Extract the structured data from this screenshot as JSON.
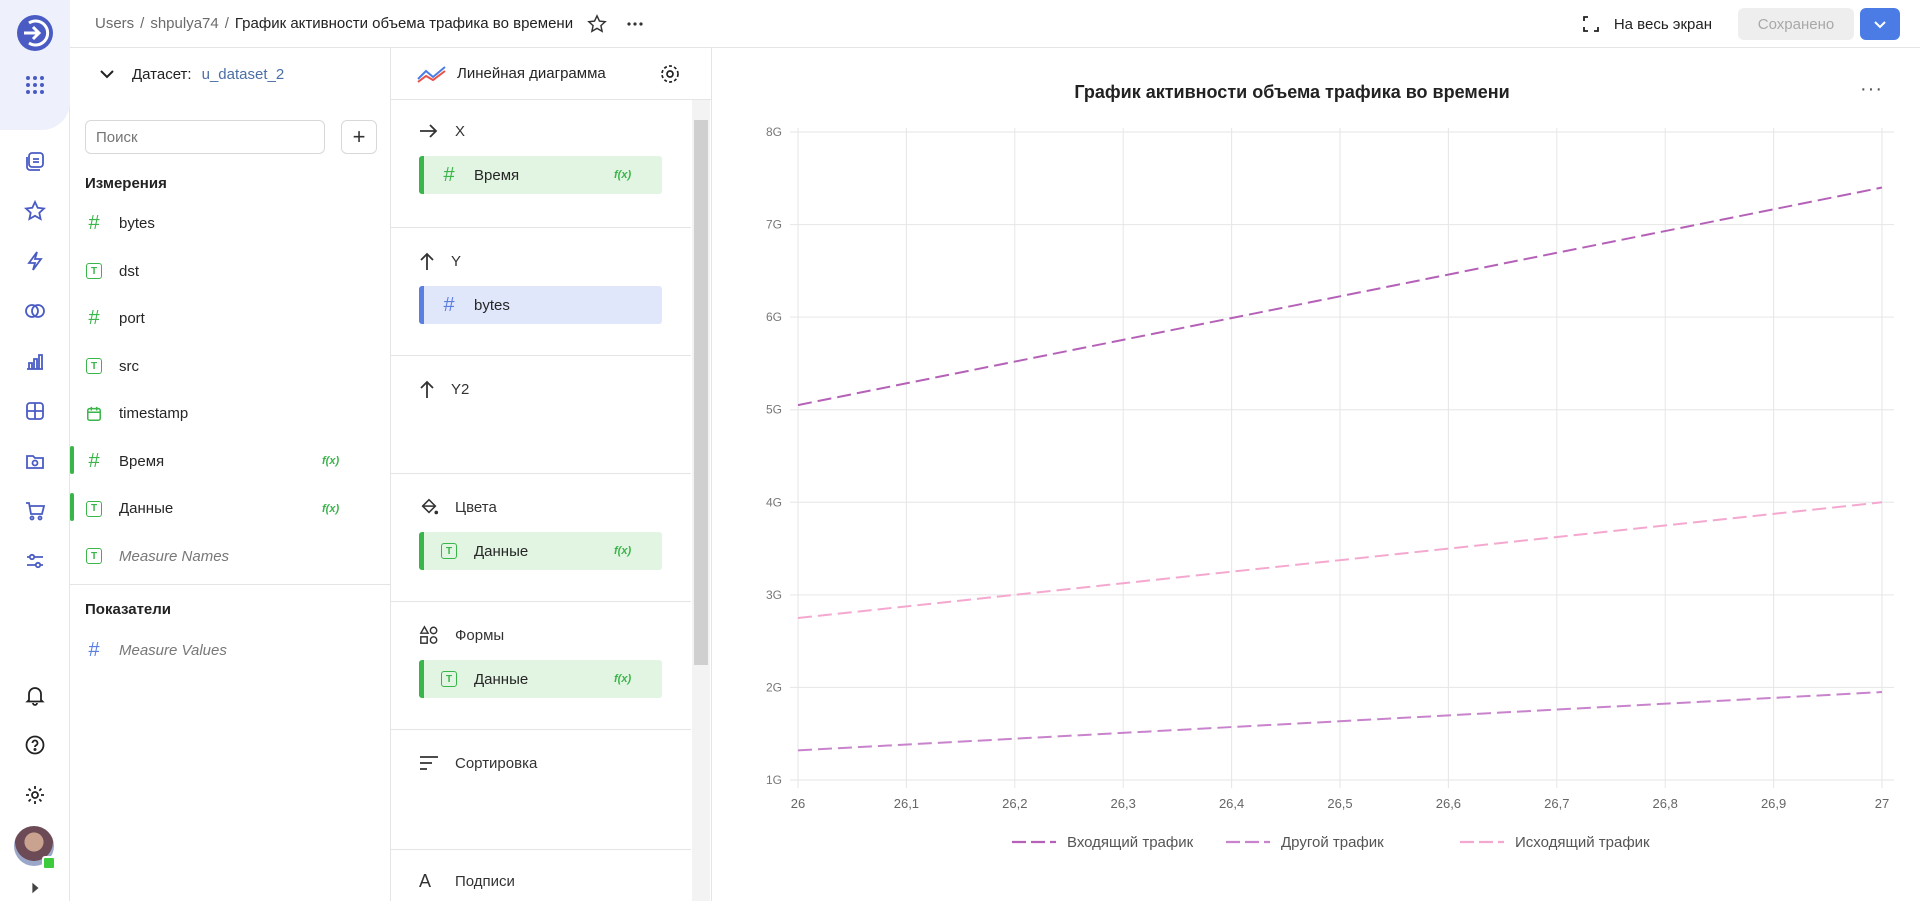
{
  "breadcrumbs": {
    "root": "Users",
    "user": "shpulya74",
    "current": "График активности объема трафика во времени"
  },
  "header": {
    "fullscreen_label": "На весь экран",
    "saved_label": "Сохранено"
  },
  "dataset_panel": {
    "label": "Датасет:",
    "dataset_name": "u_dataset_2",
    "search_placeholder": "Поиск",
    "dimensions_title": "Измерения",
    "measures_title": "Показатели",
    "dimensions": [
      {
        "name": "bytes",
        "type": "number"
      },
      {
        "name": "dst",
        "type": "text"
      },
      {
        "name": "port",
        "type": "number"
      },
      {
        "name": "src",
        "type": "text"
      },
      {
        "name": "timestamp",
        "type": "date"
      },
      {
        "name": "Время",
        "type": "number",
        "formula": true
      },
      {
        "name": "Данные",
        "type": "text",
        "formula": true
      },
      {
        "name": "Measure Names",
        "type": "text",
        "italic": true
      }
    ],
    "measures": [
      {
        "name": "Measure Values",
        "type": "number",
        "italic": true
      }
    ],
    "fx_label": "f(x)"
  },
  "config_panel": {
    "chart_type": "Линейная диаграмма",
    "sections": {
      "x": {
        "title": "X",
        "field": "Время"
      },
      "y": {
        "title": "Y",
        "field": "bytes"
      },
      "y2": {
        "title": "Y2"
      },
      "colors": {
        "title": "Цвета",
        "field": "Данные"
      },
      "shapes": {
        "title": "Формы",
        "field": "Данные"
      },
      "sort": {
        "title": "Сортировка"
      },
      "labels": {
        "title": "Подписи"
      }
    }
  },
  "chart_data": {
    "type": "line",
    "title": "График активности объема трафика во времени",
    "x": [
      26,
      27
    ],
    "x_ticks": [
      "26",
      "26,1",
      "26,2",
      "26,3",
      "26,4",
      "26,5",
      "26,6",
      "26,7",
      "26,8",
      "26,9",
      "27"
    ],
    "y_ticks": [
      "1G",
      "2G",
      "3G",
      "4G",
      "5G",
      "6G",
      "7G",
      "8G"
    ],
    "xlim": [
      26,
      27
    ],
    "ylim": [
      1,
      8
    ],
    "y_unit": "G",
    "grid": true,
    "legend_position": "bottom",
    "series": [
      {
        "name": "Входящий трафик",
        "values": [
          5.05,
          7.4
        ],
        "color": "#b561b8"
      },
      {
        "name": "Другой трафик",
        "values": [
          1.32,
          1.95
        ],
        "color": "#c883cc"
      },
      {
        "name": "Исходящий трафик",
        "values": [
          2.75,
          4.0
        ],
        "color": "#f5a8cf"
      }
    ]
  }
}
